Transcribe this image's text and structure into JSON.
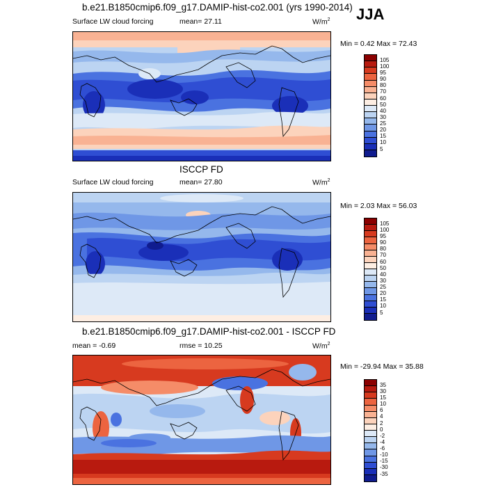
{
  "season": "JJA",
  "panels": [
    {
      "title": "b.e21.B1850cmip6.f09_g17.DAMIP-hist-co2.001 (yrs 1990-2014)",
      "left_label": "Surface LW cloud forcing",
      "mean_text": "mean=  27.11",
      "units": "W/m",
      "units_exp": "2",
      "minmax": "Min =   0.42 Max =  72.43",
      "levels": [
        "105",
        "100",
        "95",
        "90",
        "80",
        "70",
        "60",
        "50",
        "40",
        "30",
        "25",
        "20",
        "15",
        "10",
        "5"
      ],
      "colors": [
        "#8b0000",
        "#b81a0f",
        "#d73a1f",
        "#ec6440",
        "#f58c68",
        "#f9b293",
        "#fcd3bc",
        "#fdeee3",
        "#dde9f7",
        "#bcd4f2",
        "#95b8ec",
        "#6f97e6",
        "#4a72e0",
        "#2f4ed3",
        "#1a2fb8",
        "#101c8f"
      ]
    },
    {
      "title": "ISCCP FD",
      "left_label": "Surface LW cloud forcing",
      "mean_text": "mean=  27.80",
      "units": "W/m",
      "units_exp": "2",
      "minmax": "Min =   2.03 Max =  56.03",
      "levels": [
        "105",
        "100",
        "95",
        "90",
        "80",
        "70",
        "60",
        "50",
        "40",
        "30",
        "25",
        "20",
        "15",
        "10",
        "5"
      ],
      "colors": [
        "#8b0000",
        "#b81a0f",
        "#d73a1f",
        "#ec6440",
        "#f58c68",
        "#f9b293",
        "#fcd3bc",
        "#fdeee3",
        "#dde9f7",
        "#bcd4f2",
        "#95b8ec",
        "#6f97e6",
        "#4a72e0",
        "#2f4ed3",
        "#1a2fb8",
        "#101c8f"
      ]
    },
    {
      "title": "b.e21.B1850cmip6.f09_g17.DAMIP-hist-co2.001 - ISCCP FD",
      "left_label": "mean =  -0.69",
      "mid_label": "rmse =  10.25",
      "units": "W/m",
      "units_exp": "2",
      "minmax": "Min = -29.94 Max =  35.88",
      "levels": [
        "35",
        "30",
        "15",
        "10",
        "6",
        "4",
        "2",
        "0",
        "-2",
        "-4",
        "-6",
        "-10",
        "-15",
        "-30",
        "-35"
      ],
      "colors": [
        "#8b0000",
        "#b81a0f",
        "#d73a1f",
        "#ec6440",
        "#f58c68",
        "#f9b293",
        "#fcd3bc",
        "#fdeee3",
        "#dde9f7",
        "#bcd4f2",
        "#95b8ec",
        "#6f97e6",
        "#4a72e0",
        "#2f4ed3",
        "#1a2fb8",
        "#101c8f"
      ]
    }
  ]
}
